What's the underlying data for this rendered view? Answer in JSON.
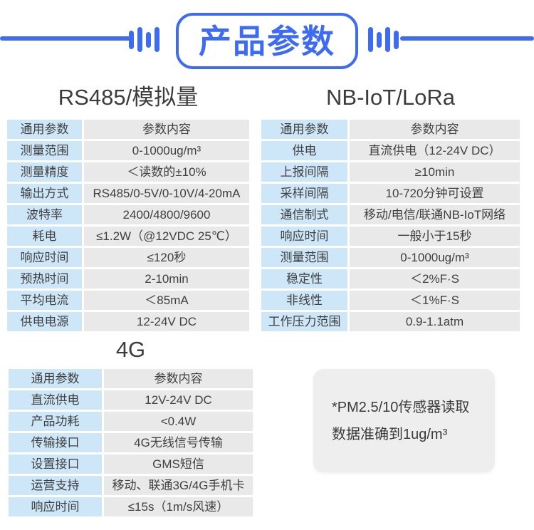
{
  "header": {
    "title": "产品参数"
  },
  "colors": {
    "accent_blue": "#3d6bf3",
    "label_cell_bg": "#cde6f8",
    "value_cell_bg": "#e9e9e9",
    "note_bg": "#eeeeee",
    "text": "#404040"
  },
  "tables": [
    {
      "id": "rs485",
      "title": "RS485/模拟量",
      "rows": [
        {
          "label": "通用参数",
          "value": "参数内容"
        },
        {
          "label": "测量范围",
          "value": "0-1000ug/m³"
        },
        {
          "label": "测量精度",
          "value": "＜读数的±10%"
        },
        {
          "label": "输出方式",
          "value": "RS485/0-5V/0-10V/4-20mA"
        },
        {
          "label": "波特率",
          "value": "2400/4800/9600"
        },
        {
          "label": "耗电",
          "value": "≤1.2W（@12VDC 25℃）"
        },
        {
          "label": "响应时间",
          "value": "≤120秒"
        },
        {
          "label": "预热时间",
          "value": "2-10min"
        },
        {
          "label": "平均电流",
          "value": "＜85mA"
        },
        {
          "label": "供电电源",
          "value": "12-24V DC"
        }
      ]
    },
    {
      "id": "nbiot",
      "title": "NB-IoT/LoRa",
      "rows": [
        {
          "label": "通用参数",
          "value": "参数内容"
        },
        {
          "label": "供电",
          "value": "直流供电（12-24V DC）"
        },
        {
          "label": "上报间隔",
          "value": "≥10min"
        },
        {
          "label": "采样间隔",
          "value": "10-720分钟可设置"
        },
        {
          "label": "通信制式",
          "value": "移动/电信/联通NB-IoT网络"
        },
        {
          "label": "响应时间",
          "value": "一般小于15秒"
        },
        {
          "label": "测量范围",
          "value": "0-1000ug/m³"
        },
        {
          "label": "稳定性",
          "value": "＜2%F·S"
        },
        {
          "label": "非线性",
          "value": "＜1%F·S"
        },
        {
          "label": "工作压力范围",
          "value": "0.9-1.1atm"
        }
      ]
    },
    {
      "id": "4g",
      "title": "4G",
      "rows": [
        {
          "label": "通用参数",
          "value": "参数内容"
        },
        {
          "label": "直流供电",
          "value": "12V-24V DC"
        },
        {
          "label": "产品功耗",
          "value": "<0.4W"
        },
        {
          "label": "传输接口",
          "value": "4G无线信号传输"
        },
        {
          "label": "设置接口",
          "value": "GMS短信"
        },
        {
          "label": "运营支持",
          "value": "移动、联通3G/4G手机卡"
        },
        {
          "label": "响应时间",
          "value": "≤15s（1m/s风速）"
        }
      ]
    }
  ],
  "note": {
    "text": "*PM2.5/10传感器读取数据准确到1ug/m³"
  }
}
